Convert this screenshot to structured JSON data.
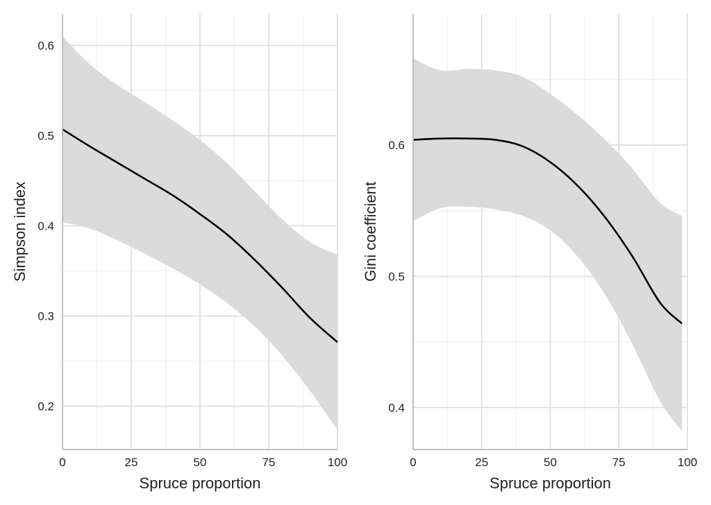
{
  "chart_data": [
    {
      "type": "line",
      "title": "",
      "xlabel": "Spruce proportion",
      "ylabel": "Simpson index",
      "xlim": [
        0,
        100
      ],
      "ylim": [
        0.152,
        0.635
      ],
      "x_ticks": [
        0,
        25,
        50,
        75,
        100
      ],
      "x_tick_labels": [
        "0",
        "25",
        "50",
        "75",
        "100"
      ],
      "y_ticks": [
        0.2,
        0.3,
        0.4,
        0.5,
        0.6
      ],
      "y_tick_labels": [
        "0.2",
        "0.3",
        "0.4",
        "0.5",
        "0.6"
      ],
      "grid": true,
      "legend": "none",
      "colors": {
        "line": "#000000",
        "ribbon": "#d9d9d9"
      },
      "series": [
        {
          "x": [
            0,
            10,
            20,
            30,
            40,
            50,
            60,
            70,
            80,
            90,
            100
          ],
          "values": [
            0.507,
            0.488,
            0.47,
            0.452,
            0.434,
            0.413,
            0.39,
            0.362,
            0.331,
            0.298,
            0.271
          ],
          "lower": [
            0.404,
            0.397,
            0.384,
            0.369,
            0.353,
            0.335,
            0.314,
            0.288,
            0.256,
            0.217,
            0.174
          ],
          "upper": [
            0.61,
            0.579,
            0.556,
            0.537,
            0.517,
            0.495,
            0.469,
            0.438,
            0.407,
            0.382,
            0.368
          ]
        }
      ]
    },
    {
      "type": "line",
      "title": "",
      "xlabel": "Spruce proportion",
      "ylabel": "Gini coefficient",
      "xlim": [
        0,
        100
      ],
      "ylim": [
        0.368,
        0.7
      ],
      "x_ticks": [
        0,
        25,
        50,
        75,
        100
      ],
      "x_tick_labels": [
        "0",
        "25",
        "50",
        "75",
        "100"
      ],
      "y_ticks": [
        0.4,
        0.5,
        0.6
      ],
      "y_tick_labels": [
        "0.4",
        "0.5",
        "0.6"
      ],
      "grid": true,
      "legend": "none",
      "colors": {
        "line": "#000000",
        "ribbon": "#d9d9d9"
      },
      "series": [
        {
          "x": [
            0,
            10,
            20,
            30,
            40,
            50,
            60,
            70,
            80,
            90,
            98
          ],
          "values": [
            0.604,
            0.605,
            0.605,
            0.604,
            0.599,
            0.587,
            0.569,
            0.545,
            0.515,
            0.48,
            0.464
          ],
          "lower": [
            0.542,
            0.552,
            0.553,
            0.551,
            0.546,
            0.535,
            0.515,
            0.486,
            0.448,
            0.405,
            0.382
          ],
          "upper": [
            0.666,
            0.657,
            0.658,
            0.657,
            0.652,
            0.639,
            0.623,
            0.604,
            0.582,
            0.556,
            0.546
          ]
        }
      ]
    }
  ]
}
